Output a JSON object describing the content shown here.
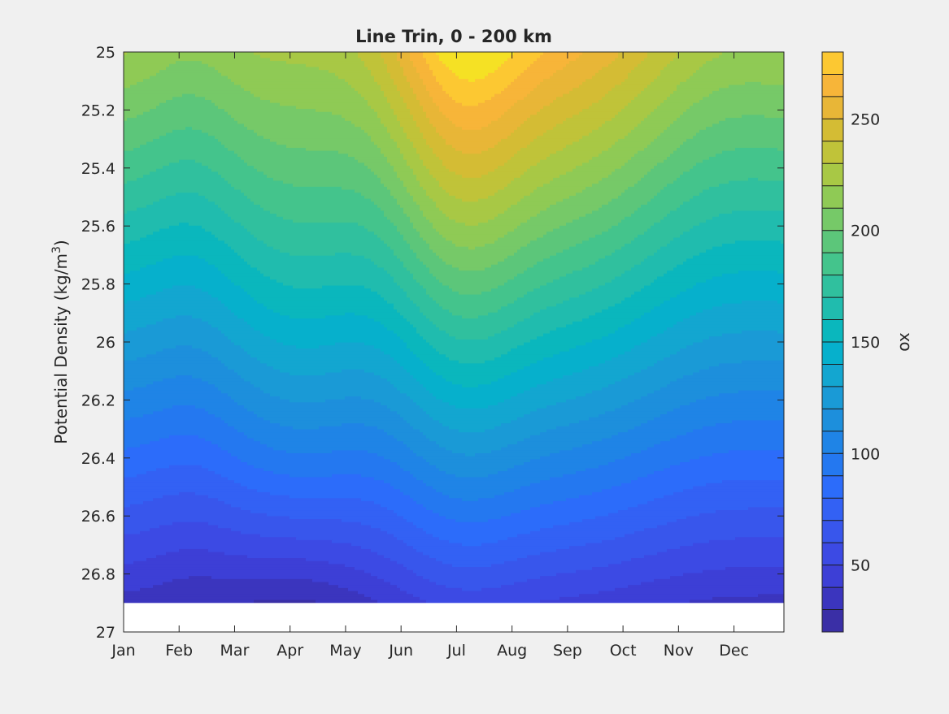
{
  "chart_data": {
    "type": "contourf",
    "title": "Line Trin, 0 - 200 km",
    "ylabel_main": "Potential Density (kg/m",
    "ylabel_sup": "3",
    "ylabel_close": ")",
    "xlabel": "",
    "x_ticks": [
      "Jan",
      "Feb",
      "Mar",
      "Apr",
      "May",
      "Jun",
      "Jul",
      "Aug",
      "Sep",
      "Oct",
      "Nov",
      "Dec"
    ],
    "x_months": [
      1,
      2,
      3,
      4,
      5,
      6,
      7,
      8,
      9,
      10,
      11,
      12
    ],
    "xlim": [
      1,
      12.9
    ],
    "y_ticks": [
      "25",
      "25.2",
      "25.4",
      "25.6",
      "25.8",
      "26",
      "26.2",
      "26.4",
      "26.6",
      "26.8",
      "27"
    ],
    "y_tick_values": [
      25,
      25.2,
      25.4,
      25.6,
      25.8,
      26,
      26.2,
      26.4,
      26.6,
      26.8,
      27
    ],
    "ylim": [
      25,
      27
    ],
    "y_reversed": true,
    "data_bottom_density": 26.9,
    "colorbar": {
      "label": "ox",
      "ticks": [
        "50",
        "100",
        "150",
        "200",
        "250"
      ],
      "tick_values": [
        50,
        100,
        150,
        200,
        250
      ],
      "range": [
        20,
        280
      ],
      "levels": [
        20,
        30,
        40,
        50,
        60,
        70,
        80,
        90,
        100,
        110,
        120,
        130,
        140,
        150,
        160,
        170,
        180,
        190,
        200,
        210,
        220,
        230,
        240,
        250,
        260,
        270,
        280
      ],
      "colors": [
        "#3a2fa6",
        "#3b35be",
        "#3d3fd6",
        "#3c4ae4",
        "#3856ec",
        "#3361f4",
        "#2c6cfa",
        "#2478f0",
        "#1f84e6",
        "#1d8fdc",
        "#1a9ad6",
        "#13a6d0",
        "#06b0cc",
        "#0ab7bd",
        "#20bcae",
        "#30c09e",
        "#44c48c",
        "#5cc67a",
        "#76c968",
        "#8fca55",
        "#a8c845",
        "#c0c339",
        "#d4bc34",
        "#e8b637",
        "#f7b539",
        "#fcc832",
        "#f5e124"
      ]
    },
    "contour_sample": {
      "note_months": [
        1,
        2,
        3,
        4,
        5,
        6,
        7,
        8,
        9,
        10,
        11,
        12
      ],
      "ox_at_25.0": [
        225,
        232,
        225,
        222,
        238,
        262,
        275,
        262,
        250,
        250,
        235,
        222
      ],
      "ox_at_25.6": [
        185,
        178,
        182,
        192,
        208,
        225,
        232,
        220,
        205,
        192,
        190,
        188
      ],
      "ox_at_26.0": [
        142,
        133,
        148,
        153,
        162,
        176,
        180,
        170,
        160,
        152,
        150,
        145
      ],
      "ox_at_26.4": [
        95,
        95,
        105,
        112,
        110,
        125,
        130,
        122,
        118,
        118,
        112,
        102
      ],
      "ox_at_26.8": [
        42,
        38,
        30,
        28,
        32,
        40,
        45,
        42,
        40,
        42,
        40,
        40
      ]
    }
  }
}
